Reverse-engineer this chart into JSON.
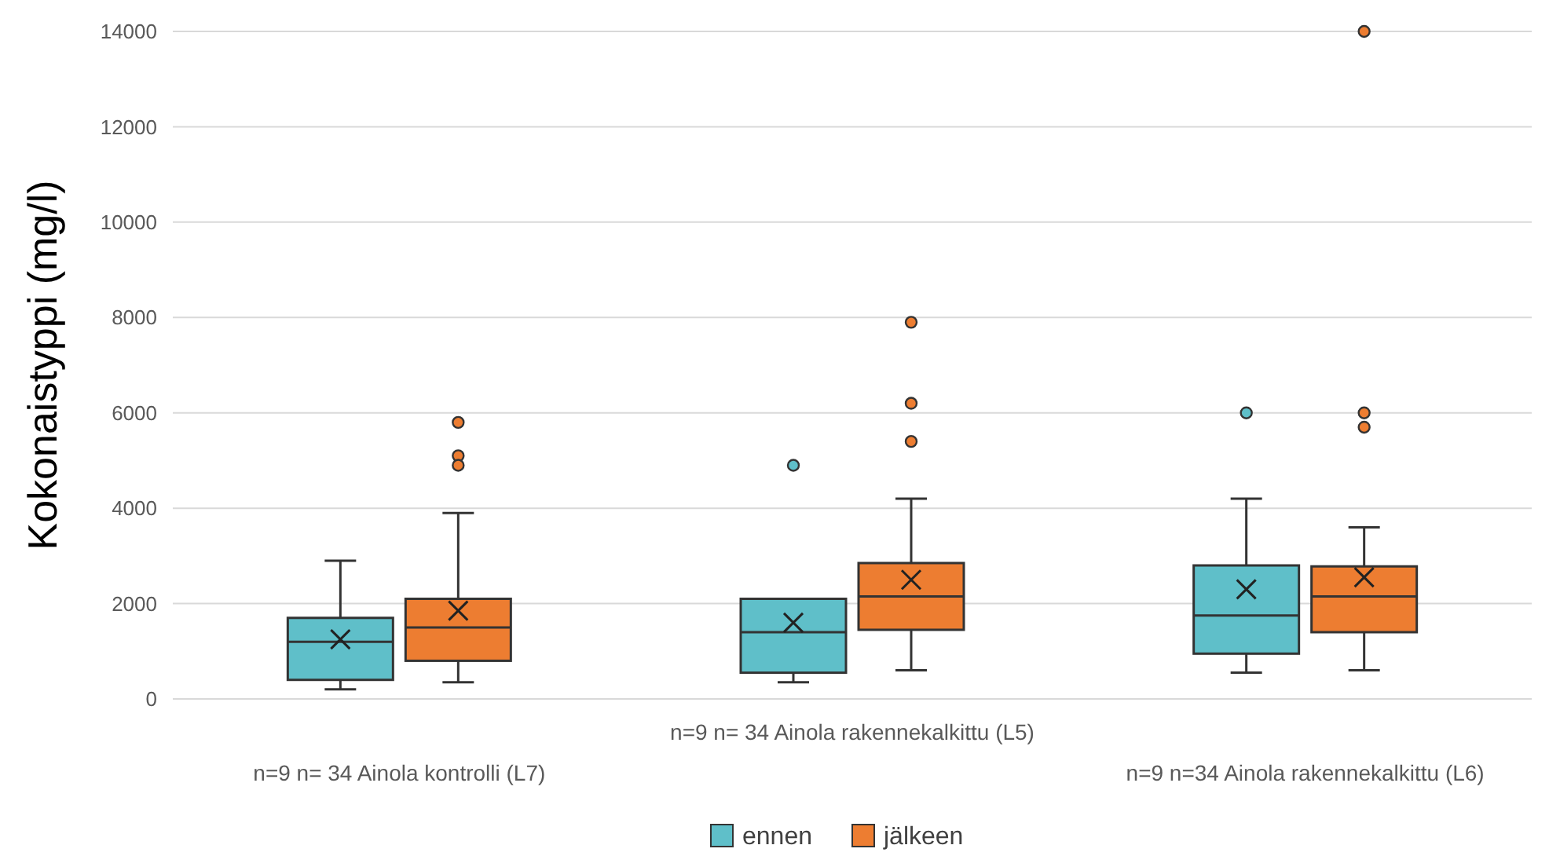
{
  "chart_data": {
    "type": "box",
    "ylabel": "Kokonaistyppi  (mg/l)",
    "categories": [
      "n=9  n= 34 Ainola kontrolli (L7)",
      "n=9  n= 34 Ainola rakennekalkittu (L5)",
      "n=9  n=34 Ainola rakennekalkittu (L6)"
    ],
    "series": [
      {
        "name": "ennen",
        "color": "#5fbfc9",
        "boxes": [
          {
            "low": 200,
            "q1": 400,
            "median": 1200,
            "q3": 1700,
            "high": 2900,
            "mean": 1250
          },
          {
            "low": 350,
            "q1": 550,
            "median": 1400,
            "q3": 2100,
            "high": 2100,
            "mean": 1600,
            "outliers": [
              4900
            ]
          },
          {
            "low": 550,
            "q1": 950,
            "median": 1750,
            "q3": 2800,
            "high": 4200,
            "mean": 2300,
            "outliers": [
              6000
            ]
          }
        ]
      },
      {
        "name": "jälkeen",
        "color": "#ed7d31",
        "boxes": [
          {
            "low": 350,
            "q1": 800,
            "median": 1500,
            "q3": 2100,
            "high": 3900,
            "mean": 1850,
            "outliers": [
              5800,
              5100,
              4900
            ]
          },
          {
            "low": 600,
            "q1": 1450,
            "median": 2150,
            "q3": 2850,
            "high": 4200,
            "mean": 2500,
            "outliers": [
              7900,
              6200,
              5400
            ]
          },
          {
            "low": 600,
            "q1": 1400,
            "median": 2150,
            "q3": 2780,
            "high": 3600,
            "mean": 2550,
            "outliers": [
              14000,
              6000,
              5700
            ]
          }
        ]
      }
    ],
    "ylim": [
      0,
      14000
    ],
    "yticks": [
      0,
      2000,
      4000,
      6000,
      8000,
      10000,
      12000,
      14000
    ],
    "grid": "y",
    "legend": "bottom"
  }
}
